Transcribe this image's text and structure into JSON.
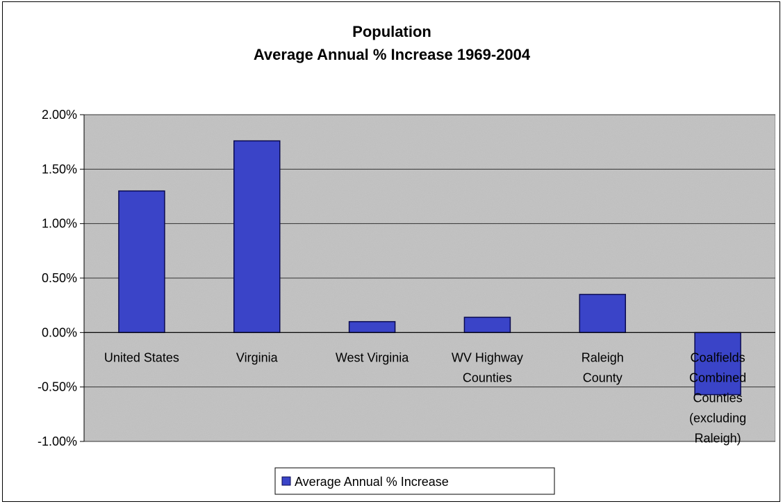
{
  "chart_data": {
    "type": "bar",
    "title": [
      "Population",
      "Average Annual % Increase 1969-2004"
    ],
    "categories": [
      [
        "United States"
      ],
      [
        "Virginia"
      ],
      [
        "West Virginia"
      ],
      [
        "WV Highway",
        "Counties"
      ],
      [
        "Raleigh",
        "County"
      ],
      [
        "Coalfields",
        "Combined",
        "Counties",
        "(excluding",
        "Raleigh)"
      ]
    ],
    "series": [
      {
        "name": "Average Annual % Increase",
        "values": [
          1.3,
          1.76,
          0.1,
          0.14,
          0.35,
          -0.57
        ]
      }
    ],
    "ylim": [
      -1.0,
      2.0
    ],
    "yticks": [
      2.0,
      1.5,
      1.0,
      0.5,
      0.0,
      -0.5,
      -1.0
    ],
    "ytick_labels": [
      "2.00%",
      "1.50%",
      "1.00%",
      "0.50%",
      "0.00%",
      "-0.50%",
      "-1.00%"
    ],
    "grid": true,
    "legend_position": "bottom",
    "colors": {
      "bar_fill": "#3a44c8",
      "bar_stroke": "#0a0a50",
      "plot_background": "#c4c4c4",
      "gridline": "#333333"
    }
  }
}
